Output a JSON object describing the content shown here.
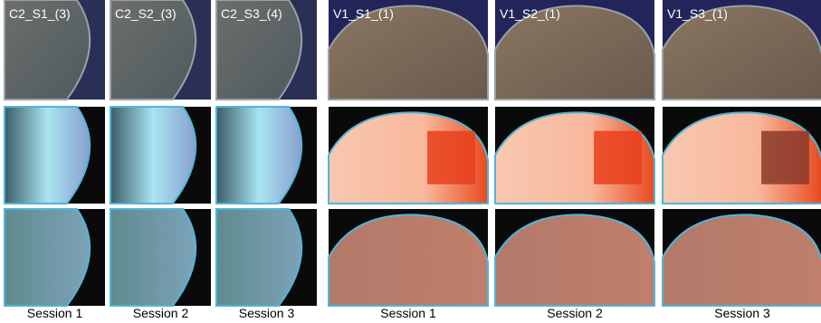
{
  "left": {
    "labels": [
      "C2_S1_(3)",
      "C2_S2_(3)",
      "C2_S3_(4)"
    ],
    "sessions": [
      "Session 1",
      "Session 2",
      "Session 3"
    ]
  },
  "right": {
    "labels": [
      "V1_S1_(1)",
      "V1_S2_(1)",
      "V1_S3_(1)"
    ],
    "sessions": [
      "Session 1",
      "Session 2",
      "Session 3"
    ]
  }
}
